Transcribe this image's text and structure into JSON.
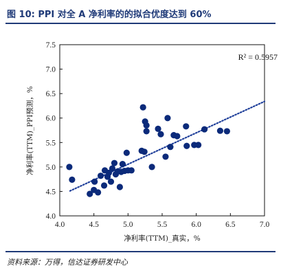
{
  "figure": {
    "title": "图 10:  PPI 对全 A 净利率的的拟合优度达到 60%",
    "source": "资料来源：万得，信达证券研发中心"
  },
  "colors": {
    "accent": "#1f3a78",
    "points": "#0b2a7a",
    "trendline": "#1f3f9a"
  },
  "chart_data": {
    "type": "scatter",
    "xlabel": "净利率(TTM)_真实，%",
    "ylabel": "净利率(TTM)_PPI预测，%",
    "xlim": [
      4.0,
      7.0
    ],
    "ylim": [
      4.0,
      7.5
    ],
    "xticks": [
      "4.0",
      "4.5",
      "5.0",
      "5.5",
      "6.0",
      "6.5",
      "7.0"
    ],
    "yticks": [
      "4.0",
      "4.5",
      "5.0",
      "5.5",
      "6.0",
      "6.5",
      "7.0",
      "7.5"
    ],
    "grid": false,
    "annotation": "R² = 0.5957",
    "trendline": {
      "style": "dotted",
      "x": [
        4.15,
        7.0
      ],
      "y": [
        4.51,
        6.34
      ]
    },
    "series": [
      {
        "points": [
          [
            4.14,
            5.0
          ],
          [
            4.18,
            4.74
          ],
          [
            4.44,
            4.45
          ],
          [
            4.5,
            4.53
          ],
          [
            4.51,
            4.7
          ],
          [
            4.56,
            4.48
          ],
          [
            4.6,
            4.82
          ],
          [
            4.65,
            4.62
          ],
          [
            4.66,
            4.93
          ],
          [
            4.7,
            4.8
          ],
          [
            4.72,
            4.88
          ],
          [
            4.75,
            4.7
          ],
          [
            4.77,
            4.97
          ],
          [
            4.8,
            5.08
          ],
          [
            4.82,
            4.85
          ],
          [
            4.85,
            4.91
          ],
          [
            4.88,
            4.59
          ],
          [
            4.9,
            4.9
          ],
          [
            4.92,
            5.06
          ],
          [
            4.95,
            4.92
          ],
          [
            4.98,
            5.29
          ],
          [
            5.0,
            4.93
          ],
          [
            5.05,
            4.93
          ],
          [
            5.2,
            5.33
          ],
          [
            5.22,
            6.22
          ],
          [
            5.24,
            5.31
          ],
          [
            5.25,
            5.93
          ],
          [
            5.27,
            5.73
          ],
          [
            5.27,
            5.85
          ],
          [
            5.35,
            5.0
          ],
          [
            5.44,
            5.78
          ],
          [
            5.48,
            5.67
          ],
          [
            5.55,
            5.21
          ],
          [
            5.58,
            6.0
          ],
          [
            5.62,
            5.41
          ],
          [
            5.67,
            5.65
          ],
          [
            5.72,
            5.63
          ],
          [
            5.85,
            5.83
          ],
          [
            5.86,
            5.43
          ],
          [
            5.97,
            5.45
          ],
          [
            6.03,
            5.45
          ],
          [
            6.12,
            5.77
          ],
          [
            6.35,
            5.74
          ],
          [
            6.45,
            5.73
          ]
        ]
      }
    ]
  }
}
